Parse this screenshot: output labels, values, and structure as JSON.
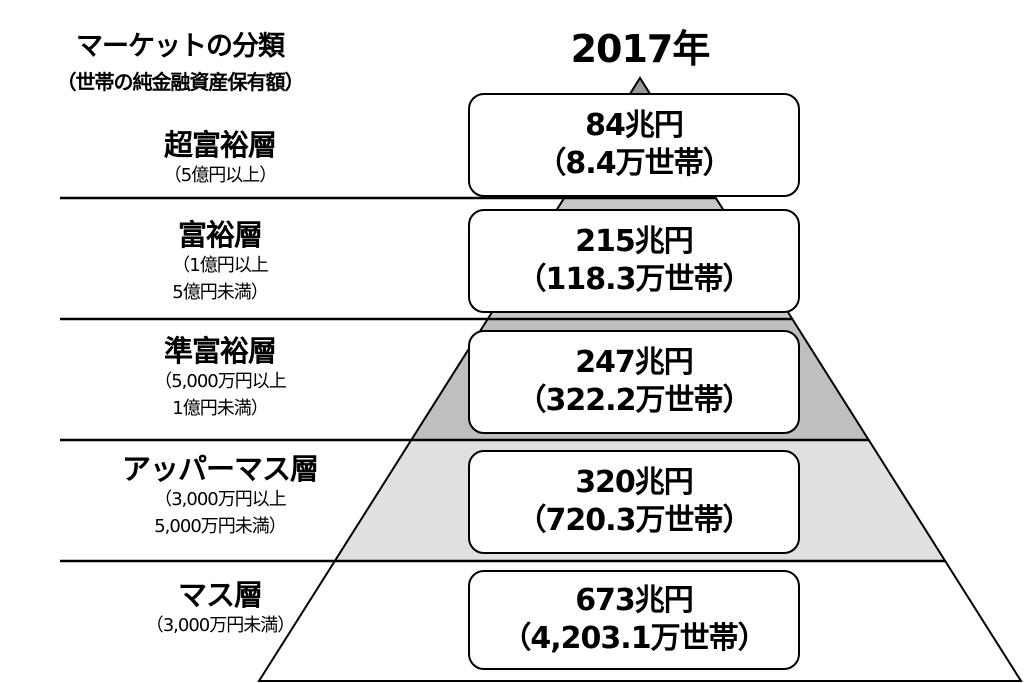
{
  "header": {
    "title": "マーケットの分類",
    "subtitle": "（世帯の純金融資産保有額）",
    "year": "2017年"
  },
  "layers": [
    {
      "name": "超富裕層",
      "range": [
        "（5億円以上）"
      ],
      "assets": "84兆円",
      "households": "（8.4万世帯）",
      "fill": "#9a9a9a"
    },
    {
      "name": "富裕層",
      "range": [
        "（1億円以上",
        "5億円未満）"
      ],
      "assets": "215兆円",
      "households": "（118.3万世帯）",
      "fill": "#c8c8c8"
    },
    {
      "name": "準富裕層",
      "range": [
        "（5,000万円以上",
        "1億円未満）"
      ],
      "assets": "247兆円",
      "households": "（322.2万世帯）",
      "fill": "#bfbfbf"
    },
    {
      "name": "アッパーマス層",
      "range": [
        "（3,000万円以上",
        "5,000万円未満）"
      ],
      "assets": "320兆円",
      "households": "（720.3万世帯）",
      "fill": "#e0e0e0"
    },
    {
      "name": "マス層",
      "range": [
        "（3,000万円未満）"
      ],
      "assets": "673兆円",
      "households": "（4,203.1万世帯）",
      "fill": "#ffffff"
    }
  ]
}
